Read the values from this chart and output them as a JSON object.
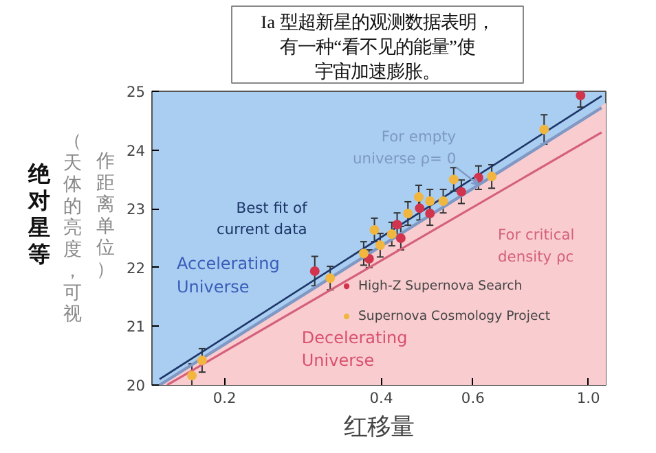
{
  "chart_data": {
    "type": "scatter",
    "xlabel": "红移量",
    "ylabel": "绝对星等",
    "annotations": [
      "Ia 型超新星的观测数据表明，有一种“看不见的能量”使宇宙加速膨胀。",
      "（天体的亮度，可视",
      "作距离单位）",
      "Accelerating Universe"
    ],
    "log": "x",
    "xlim": [
      0.145,
      1.08
    ],
    "ylim": [
      20,
      25
    ],
    "xticks": [
      0.2,
      0.4,
      0.6,
      {
        "value": 1,
        "label": "1.0"
      }
    ],
    "yticks": [
      20,
      21,
      22,
      23,
      24,
      25
    ],
    "grid": false,
    "legend": "bottom right",
    "series": [
      {
        "name": "Decelerating Universe",
        "type": "area",
        "color": "#f9cdd0",
        "x": [
          0.15,
          1.08
        ],
        "values": [
          20.0,
          24.8
        ]
      },
      {
        "name": "Best fit of current data",
        "type": "line",
        "color": "#1d3566",
        "x": [
          0.15,
          1.06
        ],
        "values": [
          20.1,
          24.92
        ]
      },
      {
        "name": "For empty universe ρ= 0",
        "type": "line",
        "color": "#7f98c4",
        "x": [
          0.15,
          1.06
        ],
        "values": [
          20.0,
          24.72
        ]
      },
      {
        "name": "For critical density ρc",
        "type": "line",
        "color": "#d4607c",
        "x": [
          0.155,
          1.06
        ],
        "values": [
          20.0,
          24.3
        ]
      },
      {
        "name": "High-Z Supernova Search",
        "color": "#d2344e",
        "marker": "circle",
        "x": [
          0.298,
          0.379,
          0.429,
          0.436,
          0.474,
          0.496,
          0.57,
          0.615,
          0.966
        ],
        "values": [
          21.94,
          22.15,
          22.73,
          22.5,
          23.01,
          22.92,
          23.29,
          23.53,
          24.93
        ],
        "errors": [
          0.25,
          0.15,
          0.2,
          0.2,
          0.2,
          0.2,
          0.2,
          0.2,
          0.2
        ]
      },
      {
        "name": "Supernova Cosmology Project",
        "color": "#f0b640",
        "marker": "circle",
        "x": [
          0.173,
          0.181,
          0.319,
          0.37,
          0.388,
          0.398,
          0.419,
          0.45,
          0.472,
          0.496,
          0.526,
          0.551,
          0.652,
          0.822
        ],
        "values": [
          20.16,
          20.42,
          21.82,
          22.24,
          22.64,
          22.38,
          22.57,
          22.92,
          23.2,
          23.13,
          23.13,
          23.5,
          23.55,
          24.35
        ],
        "errors": [
          0.2,
          0.2,
          0.2,
          0.2,
          0.2,
          0.2,
          0.2,
          0.2,
          0.2,
          0.2,
          0.2,
          0.2,
          0.2,
          0.25
        ]
      }
    ]
  }
}
